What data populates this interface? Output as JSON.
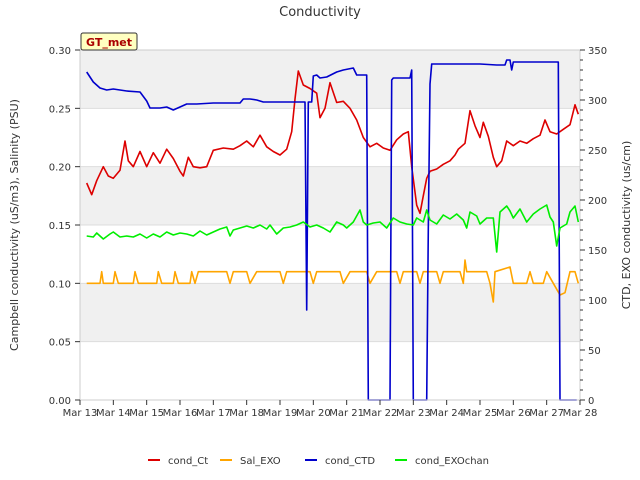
{
  "chart_data": {
    "type": "line",
    "title": "Conductivity",
    "badge": "GT_met",
    "ylabel_left": "Campbell conductivity (uS/m3), Salinity (PSU)",
    "ylabel_right": "CTD, EXO conductivity (us/cm)",
    "x_ticks": [
      "Mar 13",
      "Mar 14",
      "Mar 15",
      "Mar 16",
      "Mar 17",
      "Mar 18",
      "Mar 19",
      "Mar 20",
      "Mar 21",
      "Mar 22",
      "Mar 23",
      "Mar 24",
      "Mar 25",
      "Mar 26",
      "Mar 27",
      "Mar 28"
    ],
    "xlim": [
      0,
      15
    ],
    "ylim_left": [
      0,
      0.3
    ],
    "ylim_right": [
      0,
      350
    ],
    "y_ticks_left": [
      "0.00",
      "0.05",
      "0.10",
      "0.15",
      "0.20",
      "0.25",
      "0.30"
    ],
    "y_ticks_right": [
      "0",
      "50",
      "100",
      "150",
      "200",
      "250",
      "300",
      "350"
    ],
    "legend_position": "bottom",
    "series": [
      {
        "name": "cond_Ct",
        "axis": "left",
        "color": "#dd0000",
        "points": [
          [
            0.2,
            0.186
          ],
          [
            0.35,
            0.176
          ],
          [
            0.5,
            0.188
          ],
          [
            0.7,
            0.2
          ],
          [
            0.85,
            0.192
          ],
          [
            1.0,
            0.19
          ],
          [
            1.2,
            0.197
          ],
          [
            1.35,
            0.222
          ],
          [
            1.45,
            0.205
          ],
          [
            1.6,
            0.2
          ],
          [
            1.8,
            0.213
          ],
          [
            2.0,
            0.2
          ],
          [
            2.2,
            0.212
          ],
          [
            2.4,
            0.203
          ],
          [
            2.6,
            0.215
          ],
          [
            2.8,
            0.207
          ],
          [
            3.0,
            0.196
          ],
          [
            3.1,
            0.192
          ],
          [
            3.25,
            0.208
          ],
          [
            3.4,
            0.2
          ],
          [
            3.6,
            0.199
          ],
          [
            3.8,
            0.2
          ],
          [
            4.0,
            0.214
          ],
          [
            4.3,
            0.216
          ],
          [
            4.6,
            0.215
          ],
          [
            4.8,
            0.218
          ],
          [
            5.0,
            0.222
          ],
          [
            5.2,
            0.217
          ],
          [
            5.4,
            0.227
          ],
          [
            5.6,
            0.217
          ],
          [
            5.8,
            0.213
          ],
          [
            6.0,
            0.21
          ],
          [
            6.2,
            0.215
          ],
          [
            6.35,
            0.23
          ],
          [
            6.45,
            0.258
          ],
          [
            6.55,
            0.282
          ],
          [
            6.7,
            0.27
          ],
          [
            6.9,
            0.267
          ],
          [
            7.1,
            0.263
          ],
          [
            7.2,
            0.242
          ],
          [
            7.35,
            0.25
          ],
          [
            7.5,
            0.272
          ],
          [
            7.7,
            0.255
          ],
          [
            7.9,
            0.256
          ],
          [
            8.1,
            0.25
          ],
          [
            8.3,
            0.24
          ],
          [
            8.5,
            0.225
          ],
          [
            8.7,
            0.217
          ],
          [
            8.9,
            0.22
          ],
          [
            9.1,
            0.216
          ],
          [
            9.3,
            0.214
          ],
          [
            9.5,
            0.223
          ],
          [
            9.7,
            0.228
          ],
          [
            9.85,
            0.23
          ],
          [
            9.95,
            0.2
          ],
          [
            10.1,
            0.167
          ],
          [
            10.2,
            0.16
          ],
          [
            10.3,
            0.175
          ],
          [
            10.4,
            0.19
          ],
          [
            10.5,
            0.196
          ],
          [
            10.7,
            0.198
          ],
          [
            10.9,
            0.202
          ],
          [
            11.1,
            0.205
          ],
          [
            11.25,
            0.21
          ],
          [
            11.35,
            0.215
          ],
          [
            11.55,
            0.22
          ],
          [
            11.7,
            0.248
          ],
          [
            11.85,
            0.235
          ],
          [
            12.0,
            0.225
          ],
          [
            12.1,
            0.238
          ],
          [
            12.25,
            0.226
          ],
          [
            12.4,
            0.208
          ],
          [
            12.5,
            0.2
          ],
          [
            12.65,
            0.205
          ],
          [
            12.8,
            0.222
          ],
          [
            13.0,
            0.218
          ],
          [
            13.2,
            0.222
          ],
          [
            13.4,
            0.22
          ],
          [
            13.6,
            0.224
          ],
          [
            13.8,
            0.227
          ],
          [
            13.95,
            0.24
          ],
          [
            14.1,
            0.23
          ],
          [
            14.3,
            0.228
          ],
          [
            14.5,
            0.232
          ],
          [
            14.7,
            0.236
          ],
          [
            14.85,
            0.253
          ],
          [
            14.95,
            0.245
          ]
        ]
      },
      {
        "name": "Sal_EXO",
        "axis": "left",
        "color": "#ffa500",
        "points": [
          [
            0.2,
            0.1
          ],
          [
            0.6,
            0.1
          ],
          [
            0.65,
            0.11
          ],
          [
            0.7,
            0.1
          ],
          [
            1.0,
            0.1
          ],
          [
            1.05,
            0.11
          ],
          [
            1.15,
            0.1
          ],
          [
            1.6,
            0.1
          ],
          [
            1.65,
            0.11
          ],
          [
            1.75,
            0.1
          ],
          [
            2.3,
            0.1
          ],
          [
            2.35,
            0.11
          ],
          [
            2.45,
            0.1
          ],
          [
            2.8,
            0.1
          ],
          [
            2.85,
            0.11
          ],
          [
            2.95,
            0.1
          ],
          [
            3.3,
            0.1
          ],
          [
            3.35,
            0.11
          ],
          [
            3.45,
            0.1
          ],
          [
            3.55,
            0.11
          ],
          [
            4.4,
            0.11
          ],
          [
            4.5,
            0.1
          ],
          [
            4.6,
            0.11
          ],
          [
            5.0,
            0.11
          ],
          [
            5.1,
            0.1
          ],
          [
            5.3,
            0.11
          ],
          [
            6.0,
            0.11
          ],
          [
            6.1,
            0.1
          ],
          [
            6.2,
            0.11
          ],
          [
            6.9,
            0.11
          ],
          [
            7.0,
            0.1
          ],
          [
            7.1,
            0.11
          ],
          [
            7.8,
            0.11
          ],
          [
            7.9,
            0.1
          ],
          [
            8.1,
            0.11
          ],
          [
            8.6,
            0.11
          ],
          [
            8.7,
            0.1
          ],
          [
            8.9,
            0.11
          ],
          [
            9.5,
            0.11
          ],
          [
            9.6,
            0.1
          ],
          [
            9.7,
            0.11
          ],
          [
            10.1,
            0.11
          ],
          [
            10.2,
            0.1
          ],
          [
            10.3,
            0.11
          ],
          [
            10.7,
            0.11
          ],
          [
            10.8,
            0.1
          ],
          [
            10.9,
            0.11
          ],
          [
            11.4,
            0.11
          ],
          [
            11.5,
            0.1
          ],
          [
            11.55,
            0.12
          ],
          [
            11.6,
            0.11
          ],
          [
            12.2,
            0.11
          ],
          [
            12.3,
            0.1
          ],
          [
            12.4,
            0.084
          ],
          [
            12.45,
            0.11
          ],
          [
            12.9,
            0.114
          ],
          [
            13.0,
            0.1
          ],
          [
            13.4,
            0.1
          ],
          [
            13.5,
            0.11
          ],
          [
            13.6,
            0.1
          ],
          [
            13.9,
            0.1
          ],
          [
            14.0,
            0.11
          ],
          [
            14.2,
            0.1
          ],
          [
            14.4,
            0.09
          ],
          [
            14.55,
            0.092
          ],
          [
            14.7,
            0.11
          ],
          [
            14.85,
            0.11
          ],
          [
            14.95,
            0.1
          ]
        ]
      },
      {
        "name": "cond_CTD",
        "axis": "right",
        "color": "#0000cc",
        "points": [
          [
            0.2,
            328
          ],
          [
            0.4,
            318
          ],
          [
            0.6,
            312
          ],
          [
            0.8,
            310
          ],
          [
            1.0,
            311
          ],
          [
            1.2,
            310
          ],
          [
            1.4,
            309
          ],
          [
            1.8,
            308
          ],
          [
            2.0,
            299
          ],
          [
            2.1,
            292
          ],
          [
            2.4,
            292
          ],
          [
            2.6,
            293
          ],
          [
            2.8,
            290
          ],
          [
            3.0,
            293
          ],
          [
            3.2,
            296
          ],
          [
            3.5,
            296
          ],
          [
            4.0,
            297
          ],
          [
            4.5,
            297
          ],
          [
            4.8,
            297
          ],
          [
            4.9,
            301
          ],
          [
            5.1,
            301
          ],
          [
            5.3,
            300
          ],
          [
            5.5,
            298
          ],
          [
            6.5,
            298
          ],
          [
            6.75,
            298
          ],
          [
            6.8,
            90
          ],
          [
            6.85,
            298
          ],
          [
            6.95,
            298
          ],
          [
            7.0,
            324
          ],
          [
            7.1,
            325
          ],
          [
            7.2,
            322
          ],
          [
            7.4,
            323
          ],
          [
            7.7,
            328
          ],
          [
            7.9,
            330
          ],
          [
            8.2,
            332
          ],
          [
            8.3,
            325
          ],
          [
            8.6,
            325
          ],
          [
            8.65,
            0
          ],
          [
            9.3,
            0
          ],
          [
            9.35,
            320
          ],
          [
            9.4,
            322
          ],
          [
            9.9,
            322
          ],
          [
            9.95,
            330
          ],
          [
            10.0,
            0
          ],
          [
            10.4,
            0
          ],
          [
            10.45,
            170
          ],
          [
            10.5,
            316
          ],
          [
            10.55,
            336
          ],
          [
            11.0,
            336
          ],
          [
            11.5,
            336
          ],
          [
            12.0,
            336
          ],
          [
            12.5,
            335
          ],
          [
            12.75,
            335
          ],
          [
            12.8,
            340
          ],
          [
            12.9,
            340
          ],
          [
            12.95,
            330
          ],
          [
            13.0,
            338
          ],
          [
            13.5,
            338
          ],
          [
            14.0,
            338
          ],
          [
            14.35,
            338
          ],
          [
            14.4,
            0
          ],
          [
            14.9,
            0
          ]
        ]
      },
      {
        "name": "cond_EXOchan",
        "axis": "right",
        "color": "#00ee00",
        "points": [
          [
            0.2,
            164
          ],
          [
            0.4,
            163
          ],
          [
            0.5,
            167
          ],
          [
            0.7,
            161
          ],
          [
            0.9,
            166
          ],
          [
            1.0,
            168
          ],
          [
            1.2,
            163
          ],
          [
            1.4,
            164
          ],
          [
            1.6,
            163
          ],
          [
            1.8,
            166
          ],
          [
            2.0,
            162
          ],
          [
            2.2,
            166
          ],
          [
            2.4,
            163
          ],
          [
            2.6,
            168
          ],
          [
            2.8,
            165
          ],
          [
            3.0,
            167
          ],
          [
            3.2,
            166
          ],
          [
            3.4,
            164
          ],
          [
            3.6,
            169
          ],
          [
            3.8,
            165
          ],
          [
            4.0,
            168
          ],
          [
            4.2,
            171
          ],
          [
            4.4,
            173
          ],
          [
            4.5,
            164
          ],
          [
            4.6,
            170
          ],
          [
            4.8,
            172
          ],
          [
            5.0,
            174
          ],
          [
            5.2,
            172
          ],
          [
            5.4,
            175
          ],
          [
            5.6,
            171
          ],
          [
            5.7,
            175
          ],
          [
            5.9,
            166
          ],
          [
            6.1,
            172
          ],
          [
            6.3,
            173
          ],
          [
            6.5,
            175
          ],
          [
            6.7,
            178
          ],
          [
            6.9,
            173
          ],
          [
            7.1,
            175
          ],
          [
            7.3,
            172
          ],
          [
            7.5,
            168
          ],
          [
            7.7,
            178
          ],
          [
            7.9,
            175
          ],
          [
            8.0,
            172
          ],
          [
            8.2,
            178
          ],
          [
            8.4,
            190
          ],
          [
            8.5,
            178
          ],
          [
            8.6,
            175
          ],
          [
            8.8,
            177
          ],
          [
            9.0,
            178
          ],
          [
            9.2,
            172
          ],
          [
            9.4,
            182
          ],
          [
            9.6,
            178
          ],
          [
            9.8,
            176
          ],
          [
            10.0,
            175
          ],
          [
            10.1,
            182
          ],
          [
            10.3,
            178
          ],
          [
            10.4,
            190
          ],
          [
            10.5,
            180
          ],
          [
            10.7,
            176
          ],
          [
            10.9,
            185
          ],
          [
            11.1,
            181
          ],
          [
            11.3,
            186
          ],
          [
            11.5,
            180
          ],
          [
            11.6,
            172
          ],
          [
            11.7,
            188
          ],
          [
            11.9,
            184
          ],
          [
            12.0,
            176
          ],
          [
            12.2,
            182
          ],
          [
            12.4,
            182
          ],
          [
            12.5,
            148
          ],
          [
            12.6,
            188
          ],
          [
            12.8,
            194
          ],
          [
            12.9,
            189
          ],
          [
            13.0,
            182
          ],
          [
            13.2,
            191
          ],
          [
            13.4,
            178
          ],
          [
            13.6,
            186
          ],
          [
            13.8,
            191
          ],
          [
            14.0,
            195
          ],
          [
            14.1,
            183
          ],
          [
            14.2,
            178
          ],
          [
            14.3,
            154
          ],
          [
            14.4,
            172
          ],
          [
            14.6,
            176
          ],
          [
            14.7,
            188
          ],
          [
            14.85,
            194
          ],
          [
            14.95,
            178
          ]
        ]
      }
    ]
  }
}
